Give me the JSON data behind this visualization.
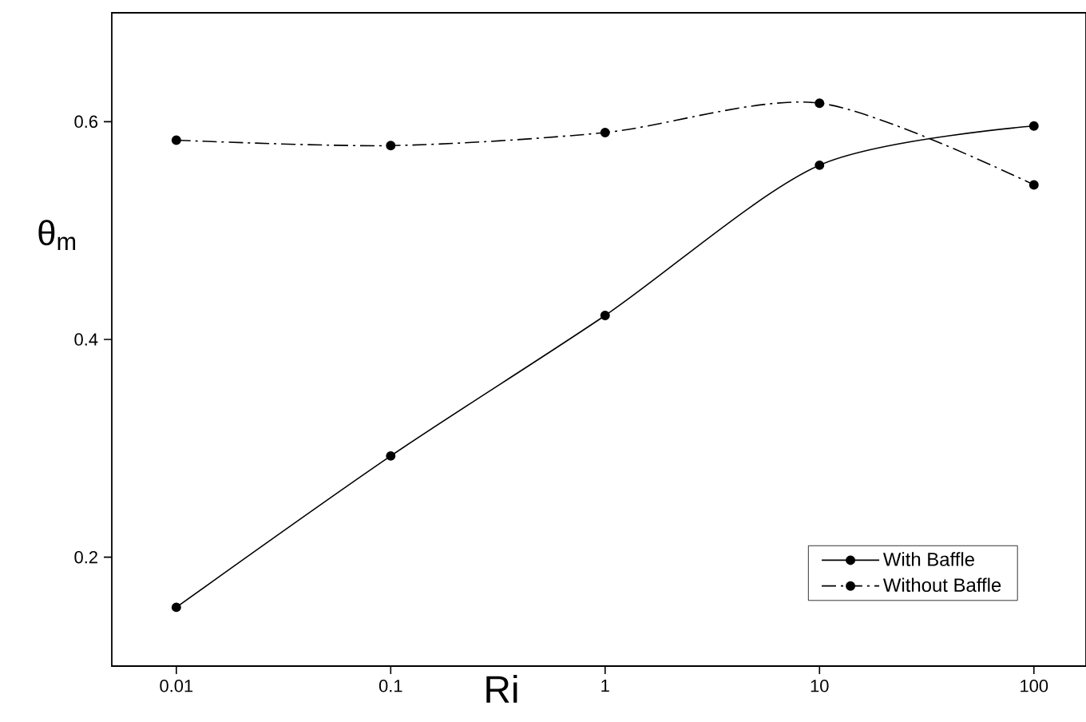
{
  "chart_data": {
    "type": "line",
    "xlabel": "Ri",
    "ylabel": "θ$_{m}$",
    "x": [
      0.01,
      0.1,
      1,
      10,
      100
    ],
    "series": [
      {
        "name": "With Baffle",
        "color": "#000000",
        "line_style": "solid",
        "values": [
          0.154,
          0.293,
          0.422,
          0.56,
          0.596
        ]
      },
      {
        "name": "Without Baffle",
        "color": "#000000",
        "line_style": "dashdot",
        "values": [
          0.583,
          0.578,
          0.59,
          0.617,
          0.542
        ]
      }
    ],
    "log": "x",
    "xlim": [
      0.005,
      175
    ],
    "ylim": [
      0.1,
      0.7
    ],
    "xticks": [
      0.01,
      0.1,
      1,
      10,
      100
    ],
    "yticks": [
      0.2,
      0.4,
      0.6
    ],
    "grid": false,
    "legend": "bottom right",
    "marker": "circle"
  }
}
